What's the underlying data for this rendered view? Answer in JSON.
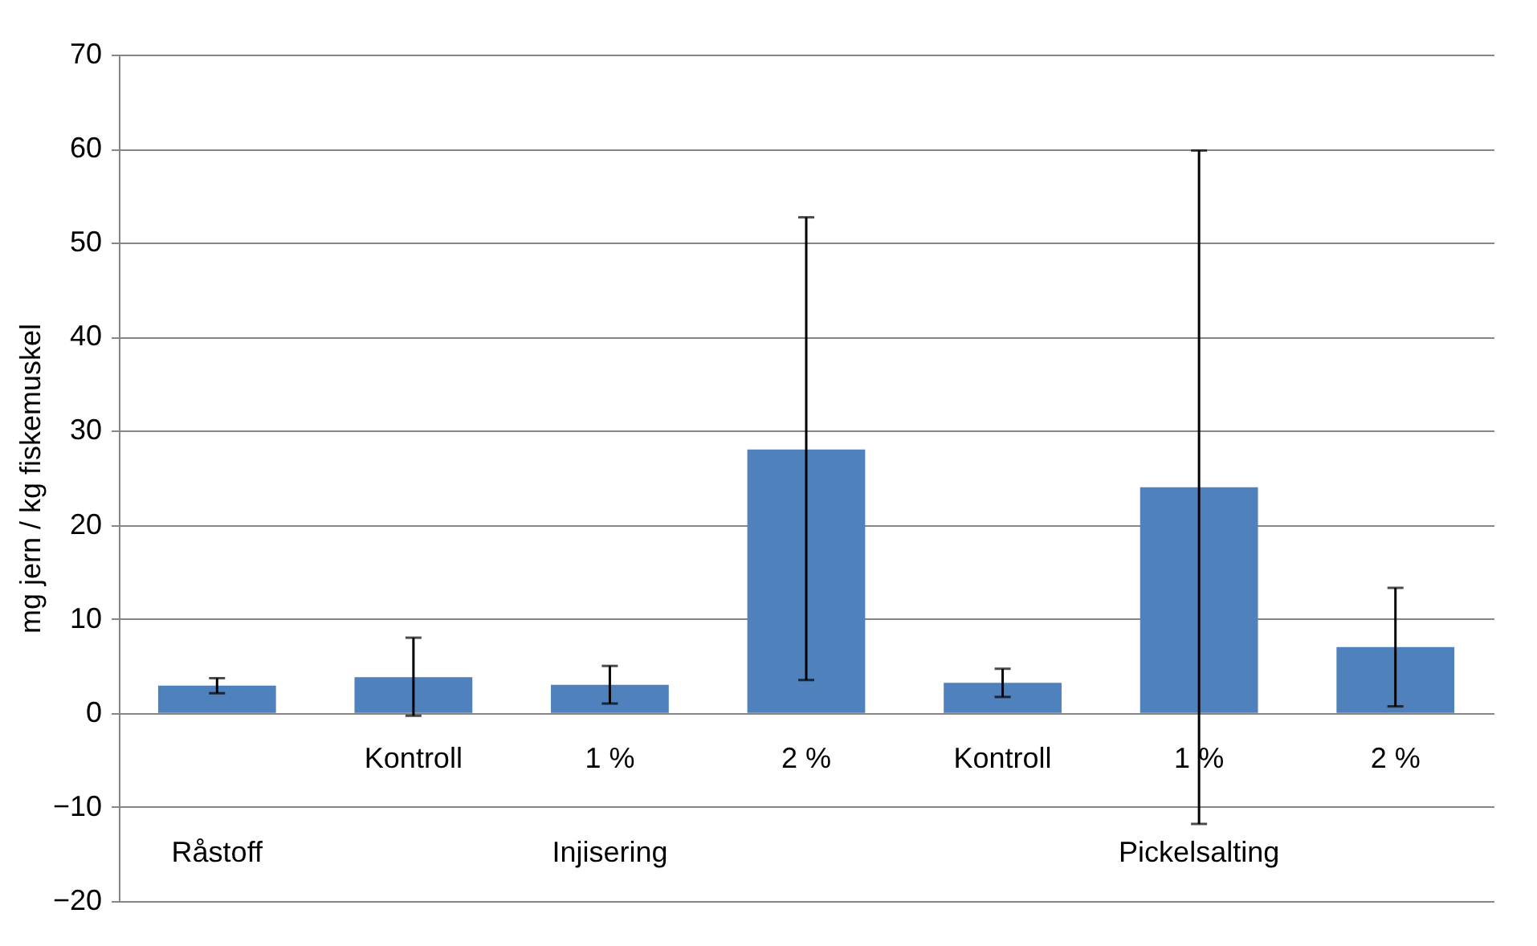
{
  "chart_data": {
    "type": "bar",
    "ylabel": "mg jern / kg fiskemuskel",
    "categories": [
      null,
      "Kontroll",
      "1 %",
      "2 %",
      "Kontroll",
      "1 %",
      "2 %"
    ],
    "values": [
      2.9,
      3.8,
      3.0,
      28.0,
      3.2,
      24.0,
      7.0
    ],
    "errors": [
      [
        2.1,
        3.7
      ],
      [
        -0.3,
        8.0
      ],
      [
        1.0,
        5.0
      ],
      [
        3.5,
        52.7
      ],
      [
        1.7,
        4.7
      ],
      [
        -11.8,
        59.8
      ],
      [
        0.7,
        13.3
      ]
    ],
    "color": "#4f81bd",
    "ylim": [
      -20,
      70
    ],
    "yticks": [
      -20,
      -10,
      0,
      10,
      20,
      30,
      40,
      50,
      60,
      70
    ],
    "grid": "y",
    "annotations": [
      "Råstoff",
      "Injisering",
      "Pickelsalting"
    ]
  }
}
